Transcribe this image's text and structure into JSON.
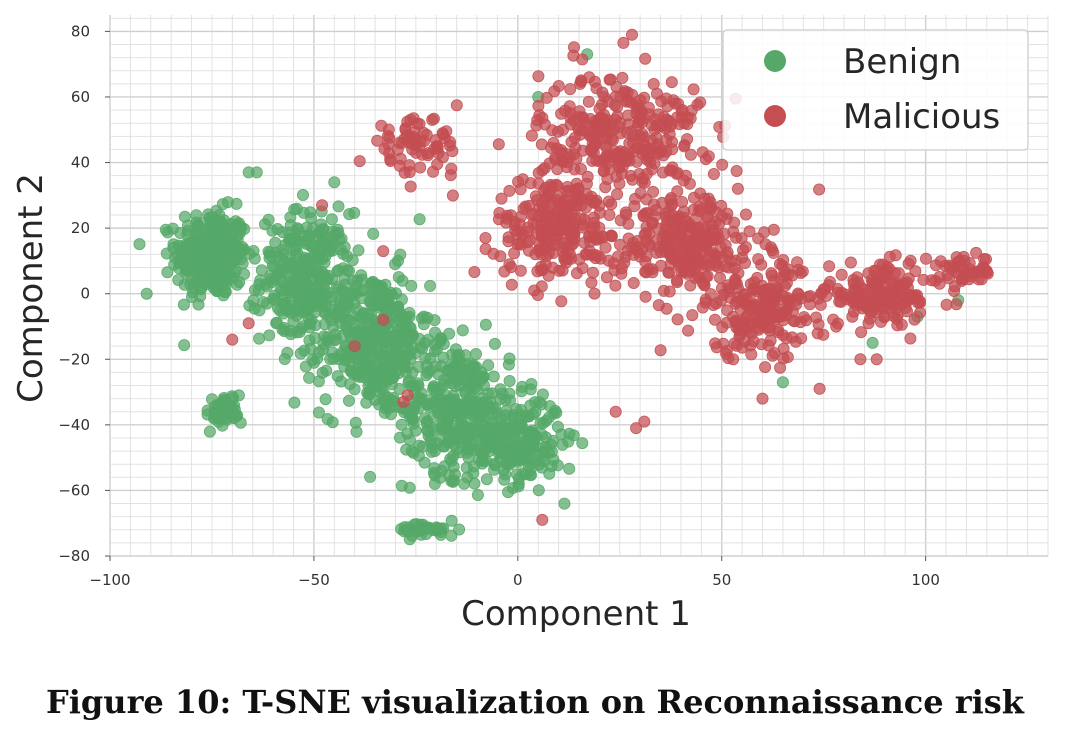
{
  "chart_data": {
    "type": "scatter",
    "xlabel": "Component 1",
    "ylabel": "Component 2",
    "xlim": [
      -100,
      130
    ],
    "ylim": [
      -80,
      85
    ],
    "xticks": [
      -100,
      -50,
      0,
      50,
      100
    ],
    "yticks": [
      -80,
      -60,
      -40,
      -20,
      0,
      20,
      40,
      60,
      80
    ],
    "xtick_labels": [
      "−100",
      "−50",
      "0",
      "50",
      "100"
    ],
    "ytick_labels": [
      "−80",
      "−60",
      "−40",
      "−20",
      "0",
      "20",
      "40",
      "60",
      "80"
    ],
    "grid": true,
    "legend_position": "top-right",
    "series": [
      {
        "name": "Benign",
        "color": "#55a868",
        "clusters": [
          {
            "center": [
              -75,
              12
            ],
            "spread": [
              8,
              12
            ],
            "count": 340
          },
          {
            "center": [
              -52,
              5
            ],
            "spread": [
              10,
              18
            ],
            "count": 300
          },
          {
            "center": [
              -35,
              -15
            ],
            "spread": [
              12,
              20
            ],
            "count": 380
          },
          {
            "center": [
              -15,
              -35
            ],
            "spread": [
              12,
              18
            ],
            "count": 320
          },
          {
            "center": [
              0,
              -45
            ],
            "spread": [
              10,
              12
            ],
            "count": 220
          },
          {
            "center": [
              -22,
              -72
            ],
            "spread": [
              7,
              2
            ],
            "count": 40
          },
          {
            "center": [
              -72,
              -36
            ],
            "spread": [
              4,
              5
            ],
            "count": 40
          }
        ],
        "points": [
          [
            -91,
            0
          ],
          [
            -66,
            37
          ],
          [
            -64,
            37
          ],
          [
            -45,
            34
          ],
          [
            5,
            60
          ],
          [
            17,
            73
          ],
          [
            65,
            -27
          ],
          [
            87,
            -15
          ],
          [
            98,
            -7
          ],
          [
            108,
            -2
          ]
        ]
      },
      {
        "name": "Malicious",
        "color": "#c44e52",
        "clusters": [
          {
            "center": [
              25,
              48
            ],
            "spread": [
              18,
              18
            ],
            "count": 320
          },
          {
            "center": [
              10,
              20
            ],
            "spread": [
              14,
              14
            ],
            "count": 240
          },
          {
            "center": [
              42,
              15
            ],
            "spread": [
              16,
              14
            ],
            "count": 260
          },
          {
            "center": [
              60,
              -5
            ],
            "spread": [
              15,
              13
            ],
            "count": 220
          },
          {
            "center": [
              90,
              0
            ],
            "spread": [
              13,
              8
            ],
            "count": 160
          },
          {
            "center": [
              -25,
              45
            ],
            "spread": [
              10,
              8
            ],
            "count": 70
          },
          {
            "center": [
              110,
              7
            ],
            "spread": [
              6,
              4
            ],
            "count": 40
          }
        ],
        "points": [
          [
            -48,
            27
          ],
          [
            -66,
            -9
          ],
          [
            -70,
            -14
          ],
          [
            -33,
            -8
          ],
          [
            -28,
            -33
          ],
          [
            -27,
            -31
          ],
          [
            -40,
            -16
          ],
          [
            6,
            -69
          ],
          [
            29,
            -41
          ],
          [
            31,
            -39
          ],
          [
            24,
            -36
          ],
          [
            -33,
            13
          ],
          [
            84,
            -20
          ],
          [
            88,
            -20
          ],
          [
            60,
            -32
          ],
          [
            74,
            -29
          ],
          [
            7,
            29
          ],
          [
            28,
            79
          ]
        ]
      }
    ]
  },
  "caption": "Figure 10: T-SNE visualization on Reconnaissance risk"
}
